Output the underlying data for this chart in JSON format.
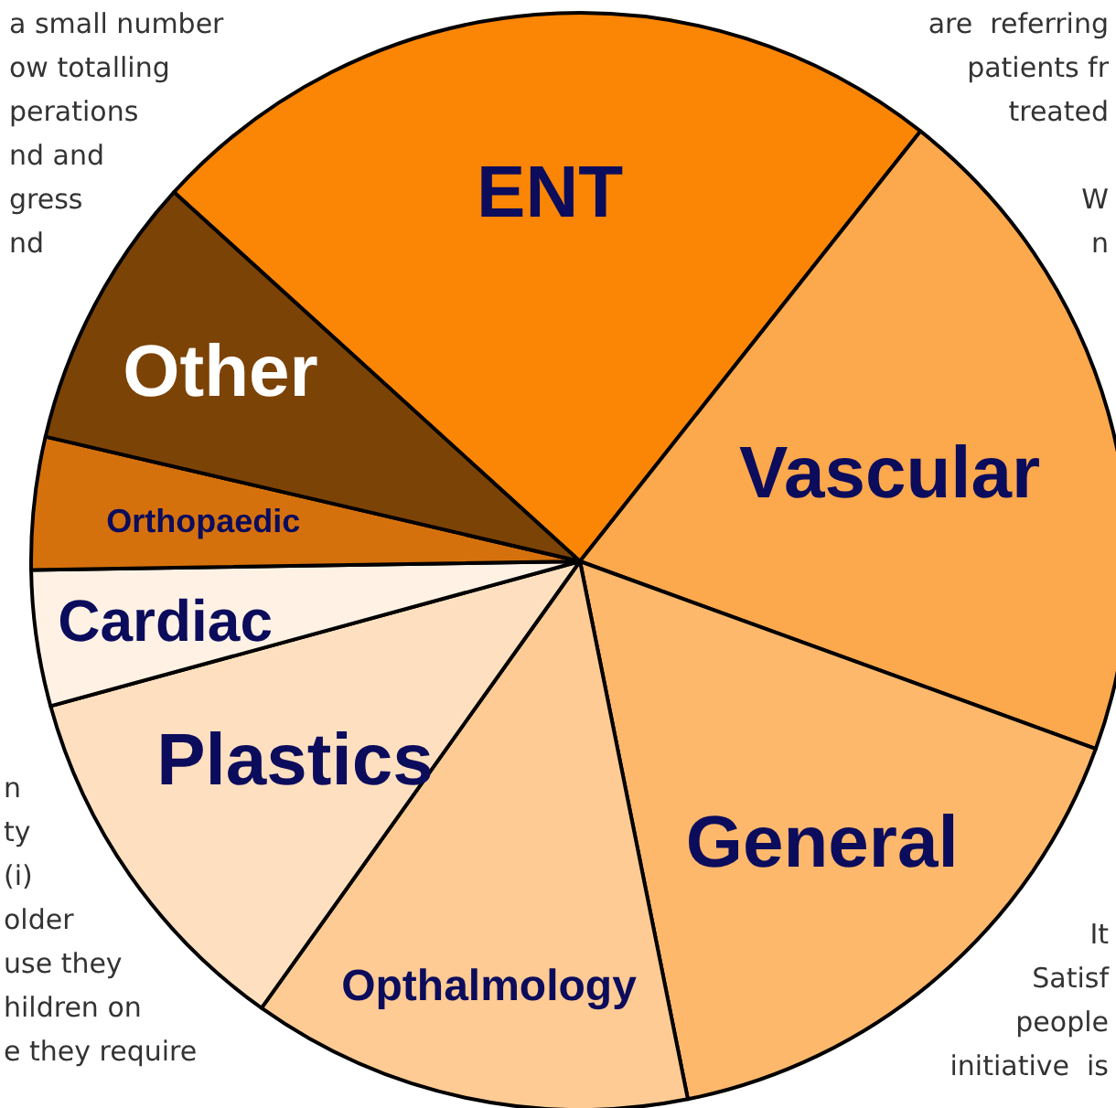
{
  "chart_data": {
    "type": "pie",
    "categories": [
      "ENT",
      "Vascular",
      "General",
      "Opthalmology",
      "Plastics",
      "Cardiac",
      "Orthopaedic",
      "Other"
    ],
    "values": [
      23.9,
      19.9,
      16.3,
      13.0,
      10.9,
      4.0,
      3.9,
      8.1
    ],
    "colors": [
      "#fb8505",
      "#fca84c",
      "#fdb86c",
      "#fecb94",
      "#fee0c0",
      "#fff2e4",
      "#d5710c",
      "#7c4306"
    ],
    "legend": false,
    "annotations": [
      "a small number\now totalling\nperations\nnd and\ngress\nnd",
      "are  referring\npatients fr\ntreated\n\nW\nn",
      "n\nty\n(i)\nolder\nuse they\nhildren on\ne they require",
      "It\nSatisf\npeople\ninitiative  is"
    ]
  }
}
